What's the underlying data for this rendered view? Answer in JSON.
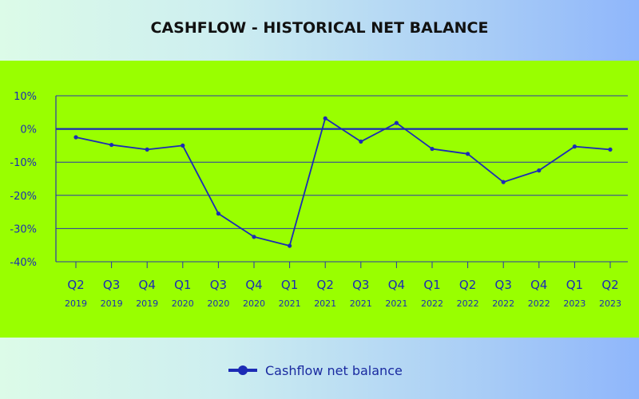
{
  "chart_data": {
    "type": "line",
    "title": "CASHFLOW - HISTORICAL NET BALANCE",
    "xlabel": "",
    "ylabel": "",
    "ylim": [
      -40,
      10
    ],
    "yticks": [
      10,
      0,
      -10,
      -20,
      -30,
      -40
    ],
    "ytick_labels": [
      "10%",
      "0%",
      "-10%",
      "-20%",
      "-30%",
      "-40%"
    ],
    "categories": [
      {
        "q": "Q2",
        "y": "2019"
      },
      {
        "q": "Q3",
        "y": "2019"
      },
      {
        "q": "Q4",
        "y": "2019"
      },
      {
        "q": "Q1",
        "y": "2020"
      },
      {
        "q": "Q3",
        "y": "2020"
      },
      {
        "q": "Q4",
        "y": "2020"
      },
      {
        "q": "Q1",
        "y": "2021"
      },
      {
        "q": "Q2",
        "y": "2021"
      },
      {
        "q": "Q3",
        "y": "2021"
      },
      {
        "q": "Q4",
        "y": "2021"
      },
      {
        "q": "Q1",
        "y": "2022"
      },
      {
        "q": "Q2",
        "y": "2022"
      },
      {
        "q": "Q3",
        "y": "2022"
      },
      {
        "q": "Q4",
        "y": "2022"
      },
      {
        "q": "Q1",
        "y": "2023"
      },
      {
        "q": "Q2",
        "y": "2023"
      }
    ],
    "series": [
      {
        "name": "Cashflow net balance",
        "values": [
          -2.5,
          -4.8,
          -6.2,
          -5.0,
          -25.5,
          -32.5,
          -35.2,
          3.2,
          -3.8,
          1.8,
          -6.0,
          -7.5,
          -16.0,
          -12.5,
          -5.3,
          -6.2
        ]
      }
    ],
    "grid": true,
    "legend": "bottom-center",
    "colors": {
      "line": "#1c2bb5",
      "grid": "#2a36a8",
      "zero_line": "#1c2bb5",
      "tick_text": "#1c2bb5",
      "panel": "#99ff00"
    }
  }
}
